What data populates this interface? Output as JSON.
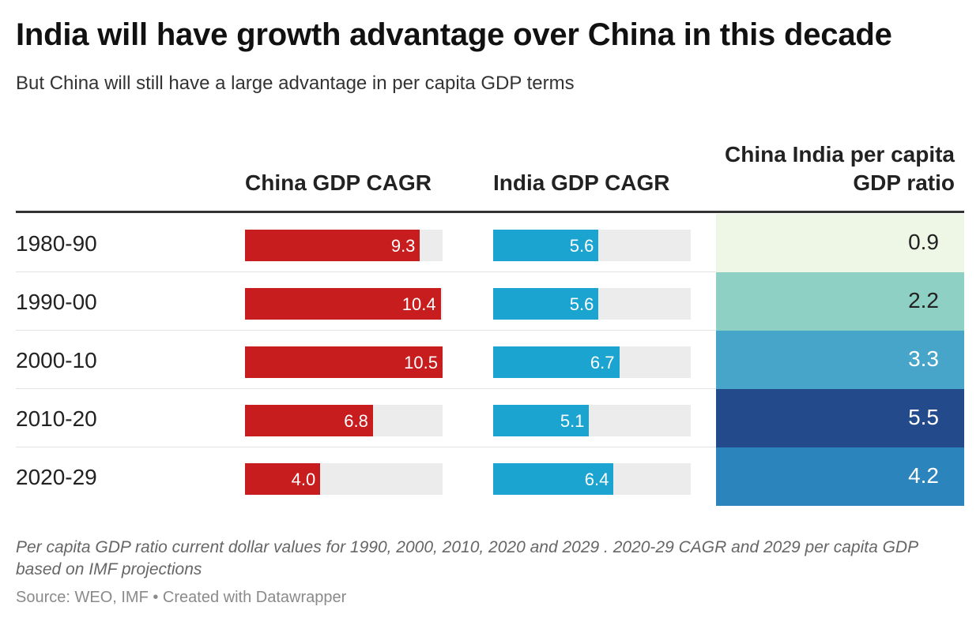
{
  "title": "India will have growth advantage over China in this decade",
  "subtitle": "But China will still have a large advantage in per capita GDP terms",
  "columns": {
    "china": "China GDP CAGR",
    "india": "India GDP CAGR",
    "ratio": "China India per capita GDP ratio"
  },
  "note": "Per capita GDP ratio current dollar values for 1990, 2000, 2010, 2020 and 2029 . 2020-29 CAGR and 2029 per capita GDP based on IMF projections",
  "source": "Source: WEO, IMF • Created with Datawrapper",
  "colors": {
    "china_bar": "#c81d1e",
    "india_bar": "#1ca4d0",
    "track": "#ececec",
    "heat_scale": [
      "#eef7e6",
      "#8fd0c4",
      "#46a5c8",
      "#2b84bb",
      "#234b8c"
    ]
  },
  "chart_data": {
    "type": "table",
    "bar_max": 10.5,
    "rows": [
      {
        "period": "1980-90",
        "china": "9.3",
        "india": "5.6",
        "ratio": "0.9",
        "ratio_color": "#eef7e6",
        "ratio_text_color": "#222222"
      },
      {
        "period": "1990-00",
        "china": "10.4",
        "india": "5.6",
        "ratio": "2.2",
        "ratio_color": "#8fd0c4",
        "ratio_text_color": "#222222"
      },
      {
        "period": "2000-10",
        "china": "10.5",
        "india": "6.7",
        "ratio": "3.3",
        "ratio_color": "#46a5c8",
        "ratio_text_color": "#ffffff"
      },
      {
        "period": "2010-20",
        "china": "6.8",
        "india": "5.1",
        "ratio": "5.5",
        "ratio_color": "#234b8c",
        "ratio_text_color": "#ffffff"
      },
      {
        "period": "2020-29",
        "china": "4.0",
        "india": "6.4",
        "ratio": "4.2",
        "ratio_color": "#2b84bb",
        "ratio_text_color": "#ffffff"
      }
    ]
  }
}
